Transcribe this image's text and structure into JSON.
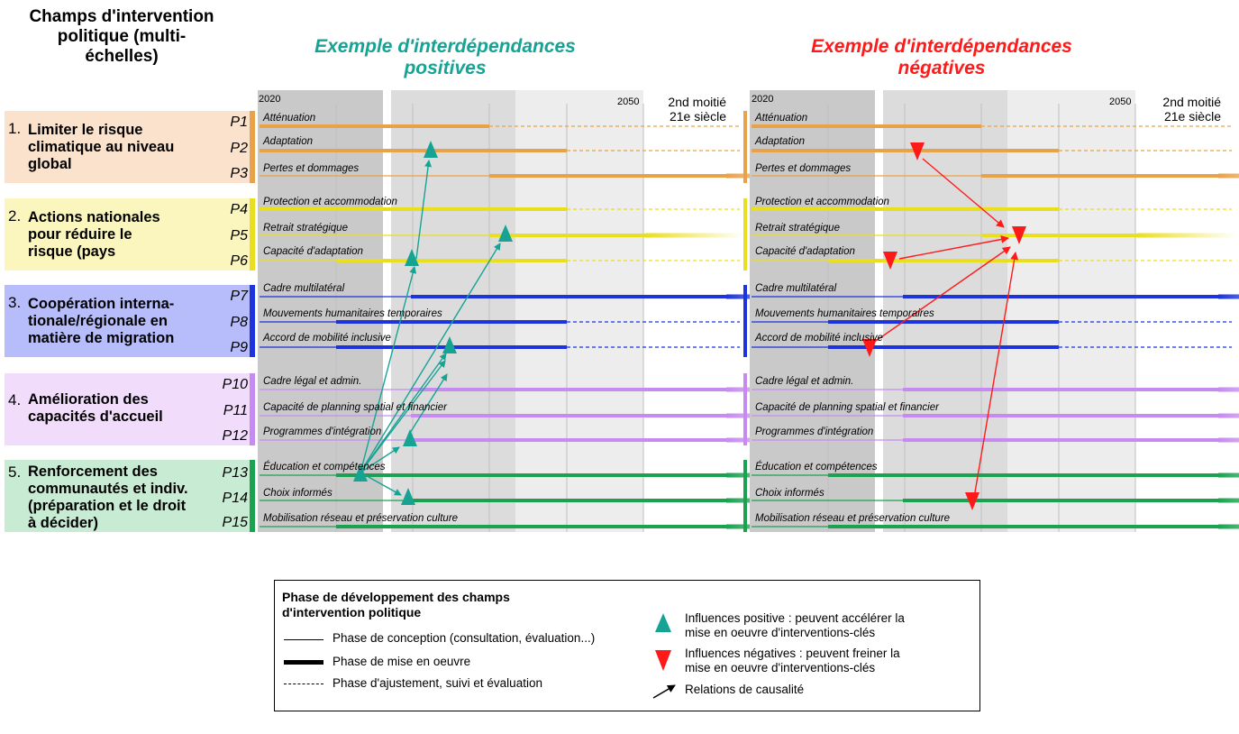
{
  "left_title": "Champs d'intervention\npolitique (multi-\néchelles)",
  "panels": [
    {
      "title": "Exemple d'interdépendances\npositives",
      "color": "#17a394"
    },
    {
      "title": "Exemple d'interdépendances\nnégatives",
      "color": "#ff1a1a"
    }
  ],
  "axis": {
    "start": "2020",
    "end": "2050",
    "late": "2nd moitié\n21e siècle"
  },
  "groups": [
    {
      "num": "1.",
      "label": "Limiter le risque\nclimatique au niveau\nglobal",
      "bg": "#fbe2cc",
      "bar": "#e8a24a"
    },
    {
      "num": "2.",
      "label": "Actions nationales\npour réduire le\nrisque (pays",
      "bg": "#fbf6bd",
      "bar": "#eadf1f"
    },
    {
      "num": "3.",
      "label": "Coopération interna-\ntionale/régionale en\nmatière de migration",
      "bg": "#b6bdfa",
      "bar": "#1c33dd"
    },
    {
      "num": "4.",
      "label": "Amélioration des\ncapacités d'accueil",
      "bg": "#f2dcfb",
      "bar": "#c78af0"
    },
    {
      "num": "5.",
      "label": "Renforcement des\ncommunautés et indiv.\n(préparation et le droit\nà décider)",
      "bg": "#c8ebd3",
      "bar": "#1aa250"
    }
  ],
  "rows": [
    {
      "code": "P1",
      "label": "Atténuation"
    },
    {
      "code": "P2",
      "label": "Adaptation"
    },
    {
      "code": "P3",
      "label": "Pertes et dommages"
    },
    {
      "code": "P4",
      "label": "Protection et accommodation"
    },
    {
      "code": "P5",
      "label": "Retrait stratégique"
    },
    {
      "code": "P6",
      "label": "Capacité d'adaptation"
    },
    {
      "code": "P7",
      "label": "Cadre multilatéral"
    },
    {
      "code": "P8",
      "label": "Mouvements humanitaires temporaires"
    },
    {
      "code": "P9",
      "label": "Accord de mobilité inclusive"
    },
    {
      "code": "P10",
      "label": "Cadre légal et admin."
    },
    {
      "code": "P11",
      "label": "Capacité de planning spatial et financier"
    },
    {
      "code": "P12",
      "label": "Programmes d'intégration"
    },
    {
      "code": "P13",
      "label": "Éducation et compétences"
    },
    {
      "code": "P14",
      "label": "Choix informés"
    },
    {
      "code": "P15",
      "label": "Mobilisation réseau et préservation culture"
    }
  ],
  "legend": {
    "title": "Phase de développement des champs\nd'intervention politique",
    "conception": "Phase de conception (consultation, évaluation...)",
    "mise_en_oeuvre": "Phase de mise en oeuvre",
    "ajustement": "Phase d'ajustement, suivi et évaluation",
    "positive": "Influences positive : peuvent accélérer la\nmise en oeuvre d'interventions-clés",
    "negative": "Influences négatives : peuvent freiner la\nmise en oeuvre d'interventions-clés",
    "causal": "Relations de causalité"
  },
  "colors": {
    "positive": "#17a394",
    "negative": "#ff1a1a",
    "shade_dark": "#c9c9c9",
    "shade_mid": "#dcdcdc",
    "shade_light": "#ededed"
  }
}
